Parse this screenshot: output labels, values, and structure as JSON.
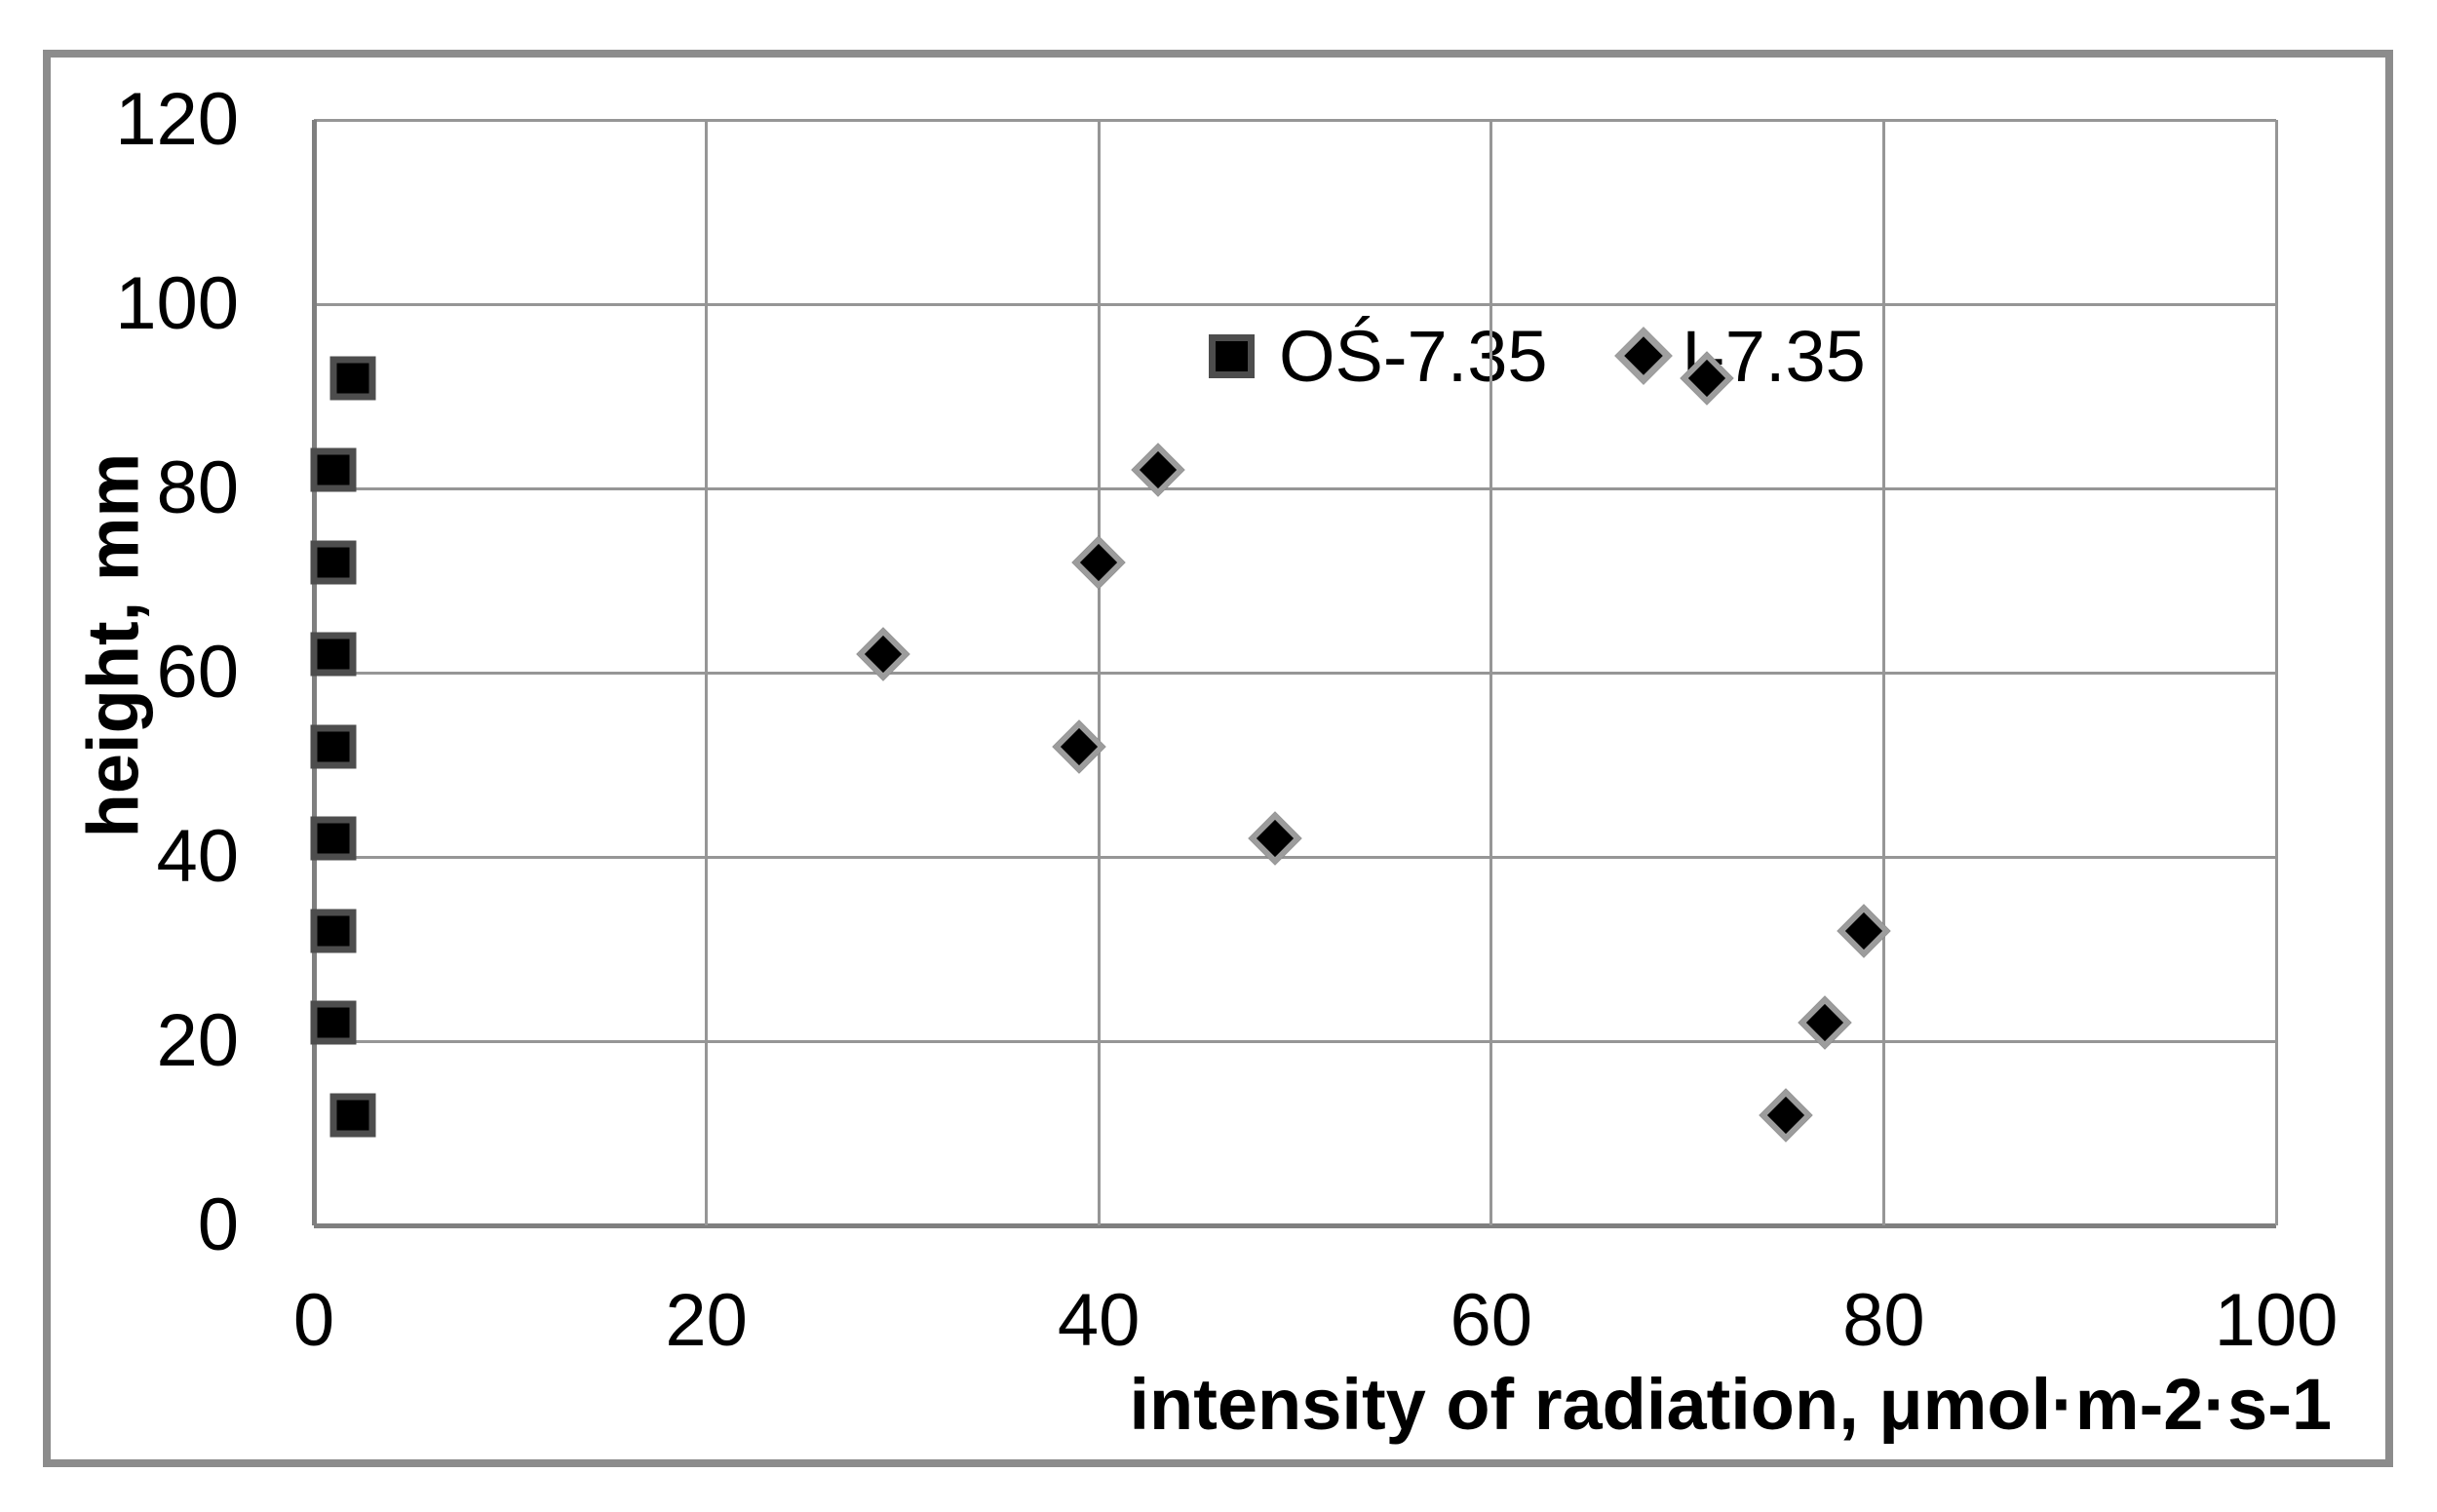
{
  "chart_data": {
    "type": "scatter",
    "title": "",
    "xlabel": "intensity of radiation, μmol·m-2·s-1",
    "ylabel": "height, mm",
    "xlim": [
      0,
      100
    ],
    "ylim": [
      0,
      120
    ],
    "xticks": [
      0,
      20,
      40,
      60,
      80,
      100
    ],
    "yticks": [
      0,
      20,
      40,
      60,
      80,
      100,
      120
    ],
    "grid": true,
    "legend_position": "top-center-inside",
    "series": [
      {
        "name": "OŚ-7.35",
        "marker": "square",
        "marker_fill": "#000000",
        "marker_border": "#4d4d4d",
        "points": [
          {
            "x": 2,
            "y": 92
          },
          {
            "x": 1,
            "y": 82
          },
          {
            "x": 1,
            "y": 72
          },
          {
            "x": 1,
            "y": 62
          },
          {
            "x": 1,
            "y": 52
          },
          {
            "x": 1,
            "y": 42
          },
          {
            "x": 1,
            "y": 32
          },
          {
            "x": 1,
            "y": 22
          },
          {
            "x": 2,
            "y": 12
          }
        ]
      },
      {
        "name": "I-7.35",
        "marker": "diamond",
        "marker_fill": "#000000",
        "marker_border": "#9c9c9c",
        "points": [
          {
            "x": 71,
            "y": 92
          },
          {
            "x": 43,
            "y": 82
          },
          {
            "x": 40,
            "y": 72
          },
          {
            "x": 29,
            "y": 62
          },
          {
            "x": 39,
            "y": 52
          },
          {
            "x": 49,
            "y": 42
          },
          {
            "x": 79,
            "y": 32
          },
          {
            "x": 77,
            "y": 22
          },
          {
            "x": 75,
            "y": 12
          }
        ]
      }
    ],
    "colors": {
      "background": "#ffffff",
      "text": "#000000",
      "gridline": "#969696",
      "axis": "#7f7f7f",
      "frame": "#8c8c8c"
    }
  }
}
